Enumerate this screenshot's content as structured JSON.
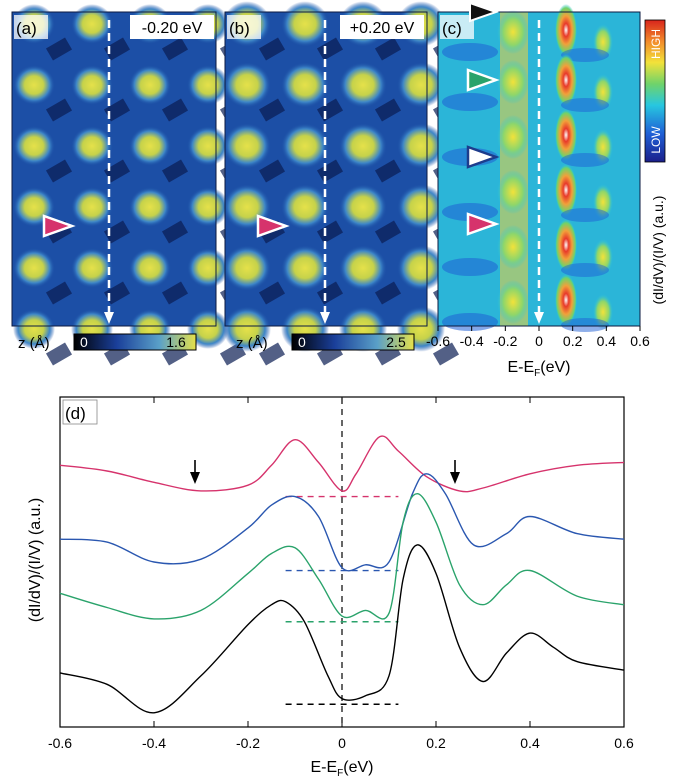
{
  "panels": {
    "a": {
      "letter": "(a)",
      "energy": "-0.20 eV",
      "cbar_label": "z (Å)",
      "cbar_min": "0",
      "cbar_max": "1.6"
    },
    "b": {
      "letter": "(b)",
      "energy": "+0.20 eV",
      "cbar_label": "z (Å)",
      "cbar_min": "0",
      "cbar_max": "2.5"
    },
    "c": {
      "letter": "(c)",
      "cbar_high": "HIGH",
      "cbar_low": "LOW",
      "side_label": "(dI/dV)/(I/V) (a.u.)",
      "xticks": [
        "-0.6",
        "-0.4",
        "-0.2",
        "0",
        "0.2",
        "0.4",
        "0.6"
      ],
      "xlabel": "E-E",
      "xlabel_sub": "F",
      "xlabel_unit": "(eV)"
    },
    "d": {
      "letter": "(d)"
    }
  },
  "colors": {
    "magenta": "#d6336c",
    "blue": "#2a57b0",
    "green": "#2aa36b",
    "black": "#000000",
    "triangle_black": "#111111",
    "triangle_green": "#2aa36b",
    "triangle_white_edge": "#1d3c8c",
    "triangle_magenta": "#d6336c"
  },
  "chart_data": {
    "type": "line",
    "title": "",
    "ylabel": "(dI/dV)/(I/V) (a.u.)",
    "xlabel": "E-E",
    "xlabel_sub": "F",
    "xlabel_unit": "(eV)",
    "xlim": [
      -0.6,
      0.6
    ],
    "xticks": [
      "-0.6",
      "-0.4",
      "-0.2",
      "0",
      "0.2",
      "0.4",
      "0.6"
    ],
    "grid": false,
    "series": [
      {
        "color": "#d6336c",
        "x": [
          -0.6,
          -0.5,
          -0.4,
          -0.3,
          -0.2,
          -0.15,
          -0.1,
          -0.05,
          0,
          0.03,
          0.08,
          0.12,
          0.18,
          0.25,
          0.3,
          0.4,
          0.5,
          0.6
        ],
        "y": [
          4.4,
          4.3,
          4.1,
          3.95,
          4.05,
          4.4,
          4.85,
          4.45,
          3.95,
          4.25,
          4.9,
          4.65,
          4.2,
          3.95,
          4.0,
          4.25,
          4.4,
          4.45
        ]
      },
      {
        "color": "#2a57b0",
        "x": [
          -0.6,
          -0.5,
          -0.4,
          -0.3,
          -0.2,
          -0.15,
          -0.1,
          -0.05,
          0,
          0.05,
          0.1,
          0.15,
          0.18,
          0.22,
          0.28,
          0.35,
          0.4,
          0.5,
          0.6
        ],
        "y": [
          3.1,
          3.05,
          2.7,
          2.75,
          3.3,
          3.7,
          3.85,
          3.5,
          2.6,
          2.65,
          2.7,
          3.9,
          4.25,
          3.9,
          3.0,
          3.2,
          3.5,
          3.2,
          3.1
        ]
      },
      {
        "color": "#2aa36b",
        "x": [
          -0.6,
          -0.5,
          -0.4,
          -0.3,
          -0.2,
          -0.15,
          -0.1,
          -0.05,
          0,
          0.05,
          0.1,
          0.13,
          0.16,
          0.2,
          0.25,
          0.3,
          0.35,
          0.4,
          0.5,
          0.6
        ],
        "y": [
          2.15,
          1.9,
          1.7,
          1.85,
          2.5,
          2.85,
          2.95,
          2.4,
          1.75,
          1.85,
          1.8,
          3.4,
          3.9,
          3.4,
          2.3,
          1.95,
          2.3,
          2.55,
          2.1,
          1.95
        ]
      },
      {
        "color": "#000000",
        "x": [
          -0.6,
          -0.5,
          -0.4,
          -0.3,
          -0.2,
          -0.15,
          -0.12,
          -0.08,
          -0.03,
          0,
          0.05,
          0.1,
          0.13,
          0.16,
          0.2,
          0.25,
          0.3,
          0.35,
          0.4,
          0.45,
          0.5,
          0.6
        ],
        "y": [
          0.75,
          0.55,
          0.05,
          0.7,
          1.6,
          1.95,
          2.0,
          1.65,
          0.7,
          0.3,
          0.35,
          0.7,
          2.4,
          3.0,
          2.5,
          1.2,
          0.6,
          1.1,
          1.45,
          1.2,
          0.95,
          0.8
        ]
      }
    ],
    "annotations": [
      "black arrows near x=-0.31 and x=0.24 on top trace",
      "dashed horizontal baselines from -0.12 to 0.12 eV",
      "dashed vertical line at 0 eV"
    ]
  }
}
